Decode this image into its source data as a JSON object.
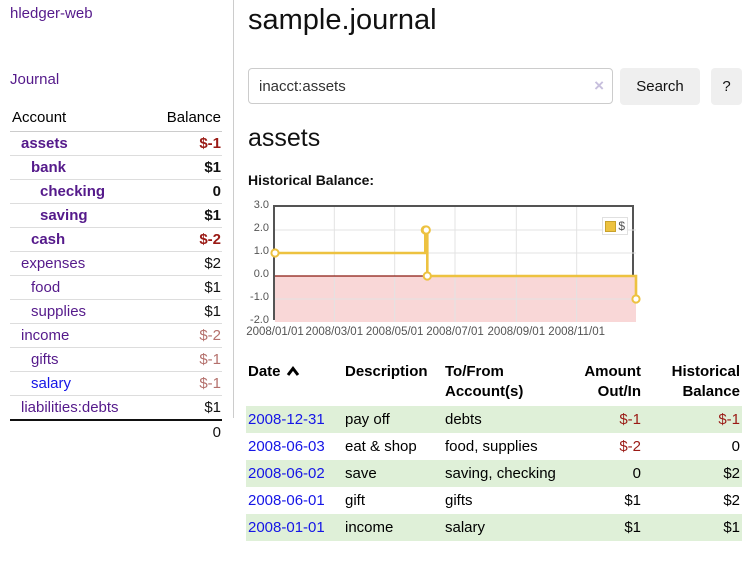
{
  "app": {
    "title": "hledger-web"
  },
  "sidebar": {
    "nav": [
      {
        "label": "Journal"
      }
    ],
    "accounts_table": {
      "headers": {
        "account": "Account",
        "balance": "Balance"
      },
      "rows": [
        {
          "account": "assets",
          "balance": "$-1",
          "level": 1,
          "bold": true,
          "balance_style": "neg-strong"
        },
        {
          "account": "bank",
          "balance": "$1",
          "level": 2,
          "bold": true,
          "balance_style": "normal"
        },
        {
          "account": "checking",
          "balance": "0",
          "level": 3,
          "bold": true,
          "balance_style": "normal"
        },
        {
          "account": "saving",
          "balance": "$1",
          "level": 3,
          "bold": true,
          "balance_style": "normal"
        },
        {
          "account": "cash",
          "balance": "$-2",
          "level": 2,
          "bold": true,
          "balance_style": "neg-strong"
        },
        {
          "account": "expenses",
          "balance": "$2",
          "level": 1,
          "bold": false,
          "balance_style": "normal"
        },
        {
          "account": "food",
          "balance": "$1",
          "level": 2,
          "bold": false,
          "balance_style": "normal"
        },
        {
          "account": "supplies",
          "balance": "$1",
          "level": 2,
          "bold": false,
          "balance_style": "normal"
        },
        {
          "account": "income",
          "balance": "$-2",
          "level": 1,
          "bold": false,
          "balance_style": "neg-soft"
        },
        {
          "account": "gifts",
          "balance": "$-1",
          "level": 2,
          "bold": false,
          "balance_style": "neg-soft"
        },
        {
          "account": "salary",
          "balance": "$-1",
          "level": 2,
          "bold": false,
          "balance_style": "neg-soft",
          "link_color": "blue"
        },
        {
          "account": "liabilities:debts",
          "balance": "$1",
          "level": 1,
          "bold": false,
          "balance_style": "normal"
        }
      ],
      "total": "0"
    }
  },
  "header": {
    "title": "sample.journal"
  },
  "search": {
    "value": "inacct:assets",
    "clear_icon": "×",
    "button_label": "Search",
    "help_label": "?"
  },
  "account_page": {
    "title": "assets",
    "chart_label": "Historical Balance:"
  },
  "chart_data": {
    "type": "line",
    "step": true,
    "title": "Historical Balance:",
    "series": [
      {
        "name": "$",
        "color": "#edc240",
        "points": [
          [
            "2008-01-01",
            1
          ],
          [
            "2008-06-01",
            2
          ],
          [
            "2008-06-02",
            2
          ],
          [
            "2008-06-03",
            0
          ],
          [
            "2008-12-31",
            -1
          ]
        ]
      }
    ],
    "x_range": [
      "2008-01-01",
      "2008-12-31"
    ],
    "ylim": [
      -2,
      3
    ],
    "y_ticks": [
      3,
      2,
      1,
      0,
      -1,
      -2
    ],
    "x_ticks": [
      "2008/01/01",
      "2008/03/01",
      "2008/05/01",
      "2008/07/01",
      "2008/09/01",
      "2008/11/01"
    ],
    "legend": {
      "label": "$",
      "position": "top-right"
    },
    "grid": true,
    "negative_region_shaded": true,
    "negative_region_color": "#f9d7d7",
    "zero_line_color": "#8b1a10"
  },
  "register_table": {
    "headers": {
      "date": "Date",
      "description": "Description",
      "accounts": "To/From Account(s)",
      "amount": "Amount Out/In",
      "balance": "Historical Balance"
    },
    "rows": [
      {
        "date": "2008-12-31",
        "description": "pay off",
        "accounts": "debts",
        "amount": "$-1",
        "balance": "$-1"
      },
      {
        "date": "2008-06-03",
        "description": "eat & shop",
        "accounts": "food, supplies",
        "amount": "$-2",
        "balance": "0"
      },
      {
        "date": "2008-06-02",
        "description": "save",
        "accounts": "saving, checking",
        "amount": "0",
        "balance": "$2"
      },
      {
        "date": "2008-06-01",
        "description": "gift",
        "accounts": "gifts",
        "amount": "$1",
        "balance": "$2"
      },
      {
        "date": "2008-01-01",
        "description": "income",
        "accounts": "salary",
        "amount": "$1",
        "balance": "$1"
      }
    ]
  },
  "colors": {
    "link_purple": "#551a8b",
    "link_blue": "#1515e6",
    "negative_strong": "#9a1a15",
    "negative_soft": "#b4706c",
    "row_stripe_green": "#dff0d8",
    "chart_line": "#edc240",
    "chart_border": "#545454",
    "grid_line": "#e3e3e3"
  }
}
